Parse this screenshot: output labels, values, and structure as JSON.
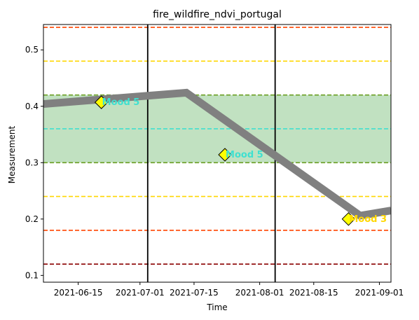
{
  "chart_data": {
    "type": "line",
    "title": "fire_wildfire_ndvi_portugal",
    "xlabel": "Time",
    "ylabel": "Measurement",
    "xlim": [
      "2021-06-06",
      "2021-09-04"
    ],
    "ylim": [
      0.088,
      0.545
    ],
    "x_ticks": [
      "2021-06-15",
      "2021-07-01",
      "2021-07-15",
      "2021-08-01",
      "2021-08-15",
      "2021-09-01"
    ],
    "y_ticks": [
      0.1,
      0.2,
      0.3,
      0.4,
      0.5
    ],
    "y_tick_labels": [
      "0.1",
      "0.2",
      "0.3",
      "0.4",
      "0.5"
    ],
    "grid": false,
    "series": [
      {
        "color": "#808080",
        "points": [
          {
            "x": "2021-06-06",
            "y": 0.404
          },
          {
            "x": "2021-07-13",
            "y": 0.424
          },
          {
            "x": "2021-08-27",
            "y": 0.206
          },
          {
            "x": "2021-09-04",
            "y": 0.215
          }
        ]
      }
    ],
    "band": {
      "y0": 0.3,
      "y1": 0.42,
      "color": "#c1e1c1"
    },
    "hlines": [
      {
        "y": 0.54,
        "color": "#ff4500"
      },
      {
        "y": 0.48,
        "color": "#ffd700"
      },
      {
        "y": 0.42,
        "color": "#6b9e23"
      },
      {
        "y": 0.36,
        "color": "#40e0d0"
      },
      {
        "y": 0.3,
        "color": "#6b9e23"
      },
      {
        "y": 0.24,
        "color": "#ffd700"
      },
      {
        "y": 0.18,
        "color": "#ff4500"
      },
      {
        "y": 0.12,
        "color": "#8b0000"
      }
    ],
    "vlines": [
      "2021-07-03",
      "2021-08-05"
    ],
    "annotations": [
      {
        "x": "2021-06-21",
        "y": 0.407,
        "text": "Mood 5",
        "color": "#40e0d0"
      },
      {
        "x": "2021-07-23",
        "y": 0.314,
        "text": "Mood 5",
        "color": "#40e0d0"
      },
      {
        "x": "2021-08-24",
        "y": 0.2,
        "text": "Mood 3",
        "color": "#ffd700"
      }
    ],
    "colors": {
      "marker_fill": "#ffff00",
      "marker_edge": "#000000"
    }
  }
}
